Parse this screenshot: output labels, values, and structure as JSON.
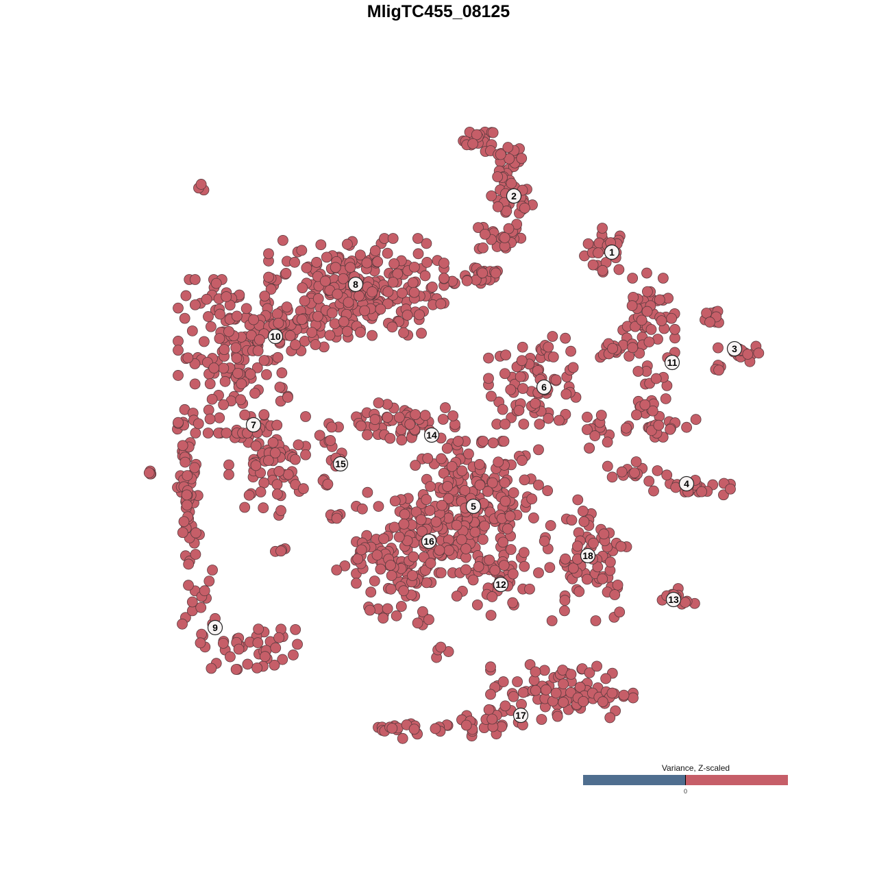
{
  "chart_data": {
    "type": "scatter",
    "title": "MligTC455_08125",
    "xlabel": "",
    "ylabel": "",
    "xlim": [
      -64,
      64
    ],
    "ylim": [
      -64,
      64
    ],
    "grid": false,
    "point_color": "#c65e68",
    "point_stroke": "#5b3a3e",
    "cluster_labels": [
      {
        "label": "1",
        "x": 25.3,
        "y": 27.2
      },
      {
        "label": "2",
        "x": 11.0,
        "y": 35.4
      },
      {
        "label": "3",
        "x": 43.2,
        "y": 13.1
      },
      {
        "label": "4",
        "x": 36.2,
        "y": -6.6
      },
      {
        "label": "5",
        "x": 5.1,
        "y": -9.9
      },
      {
        "label": "6",
        "x": 15.4,
        "y": 7.5
      },
      {
        "label": "7",
        "x": -27.0,
        "y": 2.0
      },
      {
        "label": "8",
        "x": -12.1,
        "y": 22.5
      },
      {
        "label": "9",
        "x": -32.6,
        "y": -27.6
      },
      {
        "label": "10",
        "x": -23.8,
        "y": 14.9
      },
      {
        "label": "11",
        "x": 34.1,
        "y": 11.1
      },
      {
        "label": "12",
        "x": 9.1,
        "y": -21.3
      },
      {
        "label": "13",
        "x": 34.3,
        "y": -23.5
      },
      {
        "label": "14",
        "x": -1.0,
        "y": 0.5
      },
      {
        "label": "15",
        "x": -14.3,
        "y": -3.7
      },
      {
        "label": "16",
        "x": -1.4,
        "y": -15.0
      },
      {
        "label": "17",
        "x": 12.0,
        "y": -40.4
      },
      {
        "label": "18",
        "x": 21.8,
        "y": -17.1
      }
    ],
    "point_groups": [
      {
        "cluster": "1",
        "center": [
          24.5,
          27.5
        ],
        "spread": [
          2,
          2
        ],
        "n": 30
      },
      {
        "cluster": "2",
        "center": [
          6,
          43.5
        ],
        "spread": [
          1.5,
          1
        ],
        "n": 20
      },
      {
        "cluster": "2",
        "center": [
          10,
          40.5
        ],
        "spread": [
          1.5,
          1.5
        ],
        "n": 20
      },
      {
        "cluster": "2",
        "center": [
          10.5,
          35
        ],
        "spread": [
          2,
          2
        ],
        "n": 35
      },
      {
        "cluster": "2",
        "center": [
          9,
          29.5
        ],
        "spread": [
          2,
          1.5
        ],
        "n": 25
      },
      {
        "cluster": "2",
        "center": [
          6,
          24
        ],
        "spread": [
          2.5,
          1
        ],
        "n": 20
      },
      {
        "cluster": "2",
        "center": [
          2.5,
          22.7
        ],
        "spread": [
          0.8,
          0.3
        ],
        "n": 4
      },
      {
        "cluster": "3",
        "center": [
          40.5,
          18
        ],
        "spread": [
          1,
          1
        ],
        "n": 10
      },
      {
        "cluster": "3",
        "center": [
          44,
          12.5
        ],
        "spread": [
          2,
          0.8
        ],
        "n": 15
      },
      {
        "cluster": "3",
        "center": [
          41,
          10.5
        ],
        "spread": [
          0.5,
          0.5
        ],
        "n": 4
      },
      {
        "cluster": "4",
        "center": [
          23,
          1
        ],
        "spread": [
          1.2,
          1.5
        ],
        "n": 12
      },
      {
        "cluster": "4",
        "center": [
          29,
          -5
        ],
        "spread": [
          3,
          1
        ],
        "n": 15
      },
      {
        "cluster": "4",
        "center": [
          37,
          -7.2
        ],
        "spread": [
          3.5,
          0.8
        ],
        "n": 25
      },
      {
        "cluster": "5",
        "center": [
          5,
          -10
        ],
        "spread": [
          6,
          6
        ],
        "n": 220
      },
      {
        "cluster": "6",
        "center": [
          14.5,
          8.5
        ],
        "spread": [
          4.5,
          4
        ],
        "n": 80
      },
      {
        "cluster": "7",
        "center": [
          -25,
          -4
        ],
        "spread": [
          3.5,
          4.5
        ],
        "n": 70
      },
      {
        "cluster": "8",
        "center": [
          -12,
          22
        ],
        "spread": [
          8,
          4.5
        ],
        "n": 250
      },
      {
        "cluster": "9",
        "center": [
          -36.5,
          -8
        ],
        "spread": [
          1,
          8
        ],
        "n": 60
      },
      {
        "cluster": "9",
        "center": [
          -35,
          -24
        ],
        "spread": [
          1.5,
          3
        ],
        "n": 15
      },
      {
        "cluster": "9",
        "center": [
          -27,
          -30.5
        ],
        "spread": [
          5,
          2
        ],
        "n": 40
      },
      {
        "cluster": "10",
        "center": [
          -30,
          12
        ],
        "spread": [
          5,
          7
        ],
        "n": 150
      },
      {
        "cluster": "10",
        "center": [
          -21,
          16
        ],
        "spread": [
          6,
          2
        ],
        "n": 60
      },
      {
        "cluster": "11",
        "center": [
          30.5,
          17
        ],
        "spread": [
          2.5,
          4
        ],
        "n": 50
      },
      {
        "cluster": "11",
        "center": [
          26,
          13
        ],
        "spread": [
          2.5,
          1
        ],
        "n": 15
      },
      {
        "cluster": "11",
        "center": [
          31,
          5
        ],
        "spread": [
          2,
          3
        ],
        "n": 25
      },
      {
        "cluster": "11",
        "center": [
          33,
          1.5
        ],
        "spread": [
          3.5,
          0.8
        ],
        "n": 15
      },
      {
        "cluster": "12",
        "center": [
          8.5,
          -21
        ],
        "spread": [
          3,
          3
        ],
        "n": 40
      },
      {
        "cluster": "13",
        "center": [
          34.5,
          -23.5
        ],
        "spread": [
          2,
          1
        ],
        "n": 12
      },
      {
        "cluster": "14",
        "center": [
          -4,
          2
        ],
        "spread": [
          4,
          2
        ],
        "n": 40
      },
      {
        "cluster": "14",
        "center": [
          -9.5,
          2.8
        ],
        "spread": [
          2.5,
          0.6
        ],
        "n": 12
      },
      {
        "cluster": "15",
        "center": [
          -17,
          1
        ],
        "spread": [
          1.5,
          1
        ],
        "n": 6
      },
      {
        "cluster": "15",
        "center": [
          -15,
          -3
        ],
        "spread": [
          0.8,
          2
        ],
        "n": 8
      },
      {
        "cluster": "15",
        "center": [
          -16.2,
          -6
        ],
        "spread": [
          0.6,
          0.8
        ],
        "n": 5
      },
      {
        "cluster": "16",
        "center": [
          -4,
          -15
        ],
        "spread": [
          5,
          5
        ],
        "n": 120
      },
      {
        "cluster": "16",
        "center": [
          -11,
          -18
        ],
        "spread": [
          2.5,
          1.5
        ],
        "n": 20
      },
      {
        "cluster": "16",
        "center": [
          -7,
          -24
        ],
        "spread": [
          2,
          2.5
        ],
        "n": 15
      },
      {
        "cluster": "17",
        "center": [
          18,
          -37
        ],
        "spread": [
          6.5,
          2.5
        ],
        "n": 90
      },
      {
        "cluster": "17",
        "center": [
          6,
          -41.5
        ],
        "spread": [
          4,
          1.2
        ],
        "n": 25
      },
      {
        "cluster": "17",
        "center": [
          -4,
          -42.5
        ],
        "spread": [
          3,
          0.8
        ],
        "n": 18
      },
      {
        "cluster": "18",
        "center": [
          22,
          -17
        ],
        "spread": [
          4,
          6
        ],
        "n": 70
      },
      {
        "cluster": null,
        "center": [
          -34.5,
          36.5
        ],
        "spread": [
          0.5,
          0.5
        ],
        "n": 3
      },
      {
        "cluster": null,
        "center": [
          -42,
          -5
        ],
        "spread": [
          0.5,
          0.4
        ],
        "n": 4
      },
      {
        "cluster": null,
        "center": [
          -23,
          -16.5
        ],
        "spread": [
          0.7,
          0.4
        ],
        "n": 4
      },
      {
        "cluster": null,
        "center": [
          0.5,
          -31
        ],
        "spread": [
          0.6,
          0.6
        ],
        "n": 4
      },
      {
        "cluster": null,
        "center": [
          -15,
          -11.2
        ],
        "spread": [
          1.5,
          0.5
        ],
        "n": 5
      },
      {
        "cluster": null,
        "center": [
          15.5,
          -14.5
        ],
        "spread": [
          0.3,
          1
        ],
        "n": 2
      },
      {
        "cluster": null,
        "center": [
          30.5,
          24
        ],
        "spread": [
          0.3,
          0.3
        ],
        "n": 1
      },
      {
        "cluster": null,
        "center": [
          -2,
          -27
        ],
        "spread": [
          0.8,
          1.2
        ],
        "n": 5
      }
    ],
    "legend": {
      "title": "Variance, Z-scaled",
      "tick": "0",
      "low_color": "#4f6e8f",
      "high_color": "#c65e68",
      "placement": "bottom-right"
    }
  }
}
